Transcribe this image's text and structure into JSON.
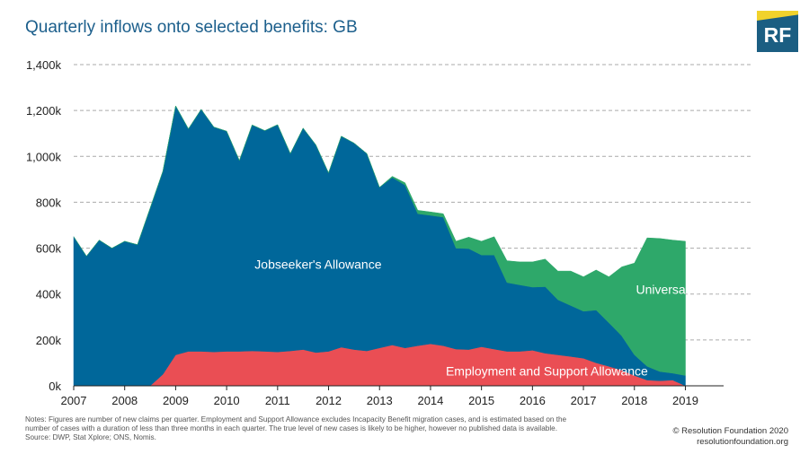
{
  "header": {
    "title": "Quarterly inflows onto selected benefits: GB"
  },
  "logo": {
    "text": "RF"
  },
  "colors": {
    "jsa": "#00679a",
    "uc": "#2ea86a",
    "esa": "#ea4e54",
    "grid": "#aaaaaa",
    "axis": "#222222",
    "title": "#1c5f8c",
    "logo_bg": "#1b5e82",
    "logo_stripe": "#f1d22c"
  },
  "footer": {
    "notes": [
      "Notes: Figures are number of new claims per quarter. Employment and Support Allowance excludes Incapacity Benefit migration cases, and is estimated based on the",
      "number of cases with a duration of less than three months in each quarter. The true level of new cases is likely to be higher, however no published data is available.",
      "Source: DWP, Stat Xplore; ONS, Nomis."
    ],
    "credit": "© Resolution Foundation 2020",
    "website": "resolutionfoundation.org"
  },
  "chart_data": {
    "type": "area",
    "stacked": true,
    "x_start": 2007,
    "x_step": 0.25,
    "xlim": [
      2007,
      2019.75
    ],
    "ylim": [
      0,
      1400000
    ],
    "y_ticks": [
      {
        "value": 0,
        "label": "0k"
      },
      {
        "value": 200000,
        "label": "200k"
      },
      {
        "value": 400000,
        "label": "400k"
      },
      {
        "value": 600000,
        "label": "600k"
      },
      {
        "value": 800000,
        "label": "800k"
      },
      {
        "value": 1000000,
        "label": "1,000k"
      },
      {
        "value": 1200000,
        "label": "1,200k"
      },
      {
        "value": 1400000,
        "label": "1,400k"
      }
    ],
    "x_ticks": [
      {
        "value": 2007,
        "label": "2007"
      },
      {
        "value": 2008,
        "label": "2008"
      },
      {
        "value": 2009,
        "label": "2009"
      },
      {
        "value": 2010,
        "label": "2010"
      },
      {
        "value": 2011,
        "label": "2011"
      },
      {
        "value": 2012,
        "label": "2012"
      },
      {
        "value": 2013,
        "label": "2013"
      },
      {
        "value": 2014,
        "label": "2014"
      },
      {
        "value": 2015,
        "label": "2015"
      },
      {
        "value": 2016,
        "label": "2016"
      },
      {
        "value": 2017,
        "label": "2017"
      },
      {
        "value": 2018,
        "label": "2018"
      },
      {
        "value": 2019,
        "label": "2019"
      }
    ],
    "grid": true,
    "legend": "inline labels",
    "series": [
      {
        "name": "Employment and Support Allowance",
        "label": "Employment and Support Allowance",
        "label_x": 2014.3,
        "label_y": 65000,
        "label_color": "#ffffff",
        "color_key": "esa",
        "values": [
          0,
          0,
          0,
          0,
          0,
          0,
          0,
          50000,
          135000,
          150000,
          150000,
          148000,
          150000,
          150000,
          152000,
          150000,
          148000,
          152000,
          158000,
          145000,
          150000,
          168000,
          158000,
          152000,
          165000,
          178000,
          165000,
          175000,
          183000,
          175000,
          160000,
          158000,
          170000,
          160000,
          150000,
          150000,
          155000,
          142000,
          135000,
          128000,
          120000,
          100000,
          85000,
          68000,
          45000,
          25000,
          22000,
          25000,
          0
        ]
      },
      {
        "name": "Jobseeker's Allowance",
        "label": "Jobseeker's Allowance",
        "label_x": 2010.55,
        "label_y": 530000,
        "label_color": "#ffffff",
        "color_key": "jsa",
        "values": [
          650000,
          565000,
          635000,
          600000,
          630000,
          615000,
          775000,
          885000,
          1085000,
          970000,
          1055000,
          980000,
          960000,
          832000,
          985000,
          962000,
          990000,
          860000,
          965000,
          905000,
          778000,
          920000,
          900000,
          860000,
          700000,
          730000,
          710000,
          575000,
          560000,
          560000,
          440000,
          440000,
          400000,
          410000,
          300000,
          290000,
          275000,
          290000,
          240000,
          222000,
          205000,
          230000,
          190000,
          150000,
          90000,
          60000,
          40000,
          30000,
          45000
        ]
      },
      {
        "name": "Universal Credit",
        "label": "Universal Credit",
        "label_x": 2018.03,
        "label_y": 420000,
        "label_color": "#ffffff",
        "color_key": "uc",
        "values": [
          0,
          0,
          0,
          0,
          0,
          0,
          0,
          0,
          0,
          0,
          0,
          0,
          0,
          0,
          0,
          0,
          0,
          0,
          0,
          0,
          0,
          0,
          0,
          0,
          0,
          5000,
          10000,
          15000,
          15000,
          15000,
          30000,
          50000,
          60000,
          80000,
          95000,
          100000,
          110000,
          120000,
          125000,
          150000,
          150000,
          175000,
          200000,
          300000,
          400000,
          560000,
          580000,
          580000,
          585000
        ]
      }
    ],
    "chart_stack_order": [
      "Employment and Support Allowance",
      "Jobseeker's Allowance",
      "Universal Credit"
    ]
  }
}
